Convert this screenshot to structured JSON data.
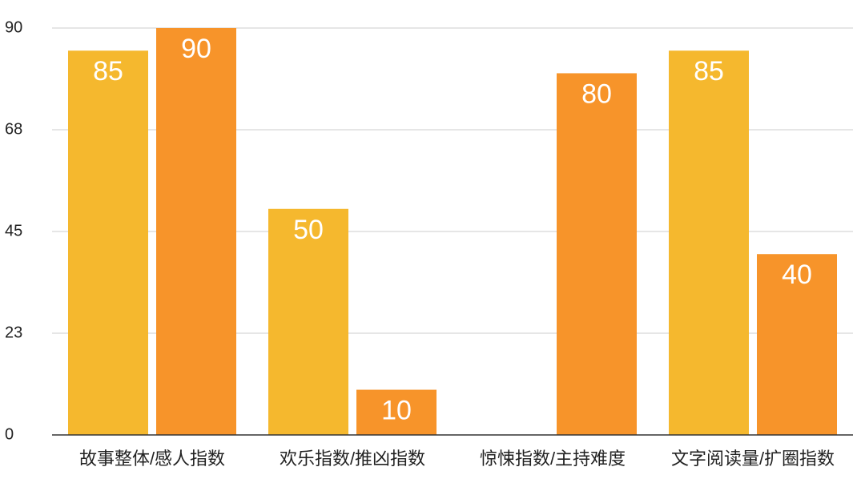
{
  "chart_data": {
    "type": "bar",
    "categories": [
      "故事整体/感人指数",
      "欢乐指数/推凶指数",
      "惊悚指数/主持难度",
      "文字阅读量/扩圈指数"
    ],
    "series": [
      {
        "color": "#f5b82e",
        "values": [
          85,
          50,
          null,
          85
        ]
      },
      {
        "color": "#f7942a",
        "values": [
          90,
          10,
          80,
          40
        ]
      }
    ],
    "ylim": [
      0,
      90
    ],
    "yticks": [
      0,
      {
        "value": 22.5,
        "label": "23"
      },
      45,
      {
        "value": 67.5,
        "label": "68"
      },
      90
    ],
    "grid": true
  }
}
